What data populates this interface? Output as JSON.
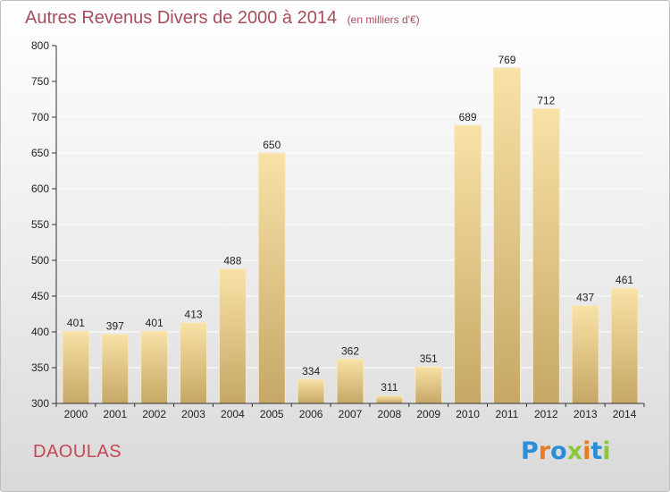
{
  "header": {
    "title": "Autres Revenus Divers de 2000 à 2014",
    "subtitle": "(en milliers d'€)"
  },
  "footer": {
    "city": "DAOULAS",
    "logo": {
      "text": "Proxiti",
      "letters": [
        {
          "char": "P",
          "color": "#2a8fd6"
        },
        {
          "char": "r",
          "color": "#e67d22"
        },
        {
          "char": "o",
          "color": "#2a8fd6"
        },
        {
          "char": "x",
          "color": "#8cc63f"
        },
        {
          "char": "i",
          "color": "#e67d22"
        },
        {
          "char": "t",
          "color": "#2a8fd6"
        },
        {
          "char": "i",
          "color": "#8cc63f"
        }
      ]
    }
  },
  "colors": {
    "title": "#a84d5a",
    "city": "#c74655",
    "bar_light": "#f8e2a6",
    "bar_dark": "#c6a766",
    "grid": "#ffffff",
    "axis": "#333333"
  },
  "chart_data": {
    "type": "bar",
    "categories": [
      "2000",
      "2001",
      "2002",
      "2003",
      "2004",
      "2005",
      "2006",
      "2007",
      "2008",
      "2009",
      "2010",
      "2011",
      "2012",
      "2013",
      "2014"
    ],
    "values": [
      401,
      397,
      401,
      413,
      488,
      650,
      334,
      362,
      311,
      351,
      689,
      769,
      712,
      437,
      461
    ],
    "data_labels": [
      "401",
      "397",
      "401",
      "413",
      "488",
      "650",
      "334",
      "362",
      "311",
      "351",
      "689",
      "769",
      "712",
      "437",
      "461"
    ],
    "yticks": [
      300,
      350,
      400,
      450,
      500,
      550,
      600,
      650,
      700,
      750,
      800
    ],
    "ylim": [
      300,
      800
    ],
    "grid": true,
    "legend": "none"
  }
}
